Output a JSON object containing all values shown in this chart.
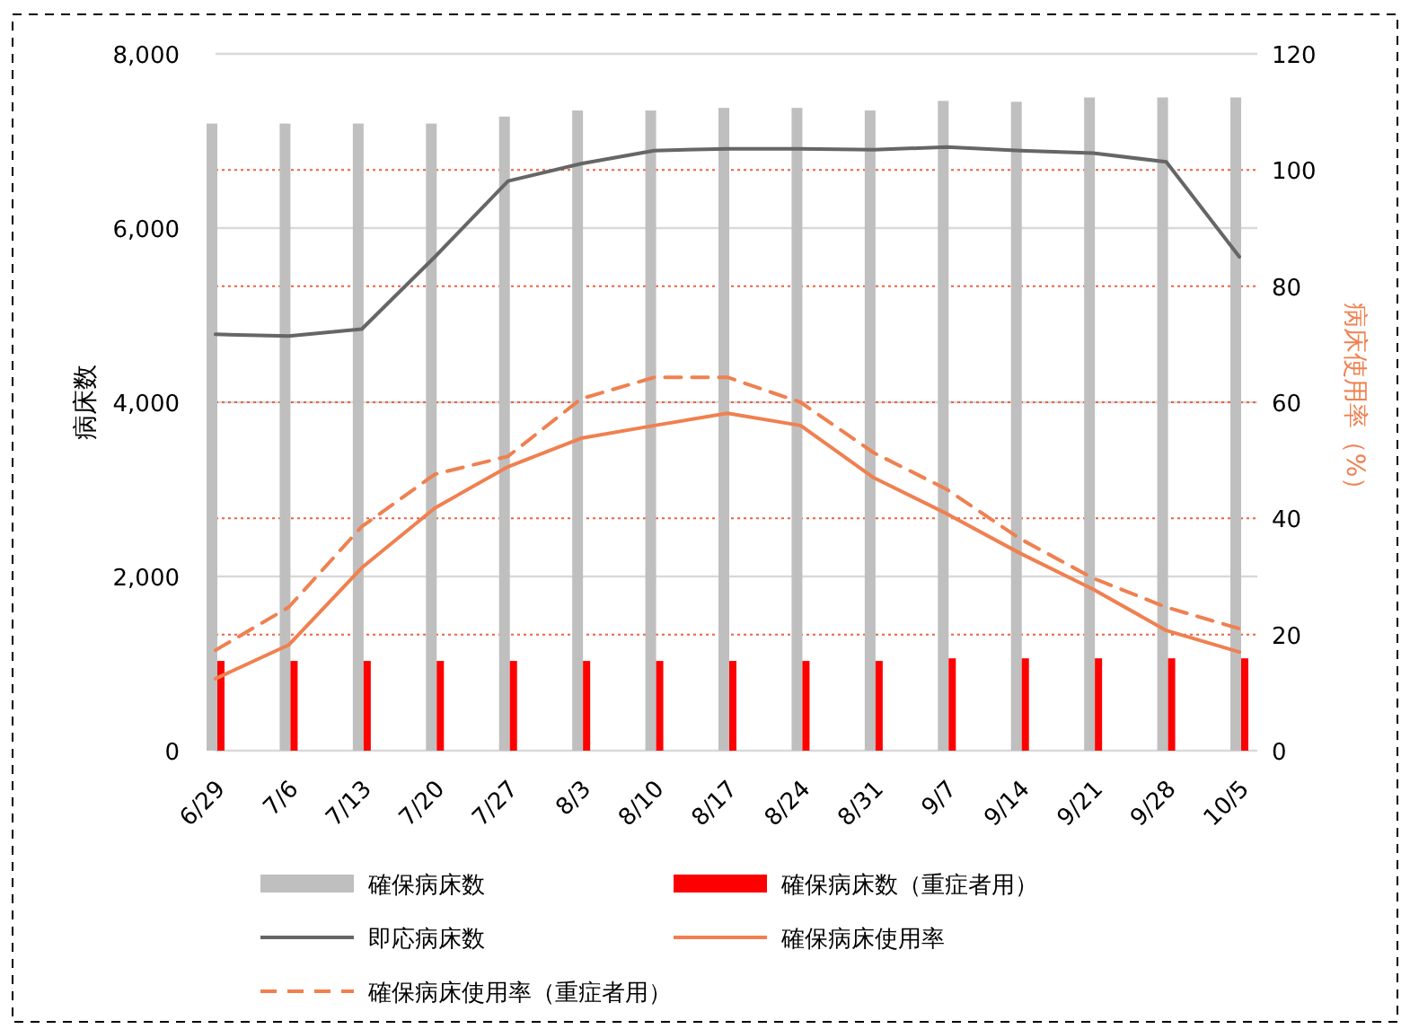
{
  "chart_data": {
    "type": "bar",
    "ylabel": "病床数",
    "y2label": "病床使用率（%）",
    "categories": [
      "6/29",
      "7/6",
      "7/13",
      "7/20",
      "7/27",
      "8/3",
      "8/10",
      "8/17",
      "8/24",
      "8/31",
      "9/7",
      "9/14",
      "9/21",
      "9/28",
      "10/5"
    ],
    "ylim": [
      0,
      8000
    ],
    "yticks": [
      {
        "value": 0,
        "label": "0"
      },
      {
        "value": 2000,
        "label": "2,000"
      },
      {
        "value": 4000,
        "label": "4,000"
      },
      {
        "value": 6000,
        "label": "6,000"
      },
      {
        "value": 8000,
        "label": "8,000"
      }
    ],
    "y2lim": [
      0,
      120
    ],
    "y2ticks": [
      0,
      20,
      40,
      60,
      80,
      100,
      120
    ],
    "grid": true,
    "legend": "bottom",
    "series": [
      {
        "name": "確保病床数",
        "color": "#bfbfbf",
        "values": [
          7200,
          7200,
          7200,
          7200,
          7280,
          7350,
          7350,
          7380,
          7380,
          7350,
          7460,
          7450,
          7500,
          7500,
          7500
        ]
      },
      {
        "name": "確保病床数（重症者用）",
        "color": "#ff0000",
        "values": [
          1030,
          1030,
          1030,
          1030,
          1030,
          1030,
          1030,
          1030,
          1030,
          1030,
          1060,
          1060,
          1060,
          1060,
          1060
        ]
      },
      {
        "name": "即応病床数",
        "type": "line",
        "color": "#666666",
        "line_style": "solid",
        "values": [
          4780,
          4760,
          4840,
          5670,
          6540,
          6740,
          6890,
          6910,
          6910,
          6900,
          6930,
          6890,
          6860,
          6760,
          5670
        ]
      },
      {
        "name": "確保病床使用率",
        "type": "line",
        "axis": "y2",
        "color": "#f08050",
        "line_style": "solid",
        "values": [
          12.4,
          18.2,
          31.5,
          41.8,
          48.9,
          53.8,
          56,
          58.1,
          56,
          47,
          40.8,
          34,
          27.8,
          20.7,
          17
        ]
      },
      {
        "name": "確保病床使用率（重症者用）",
        "type": "line",
        "axis": "y2",
        "color": "#f08050",
        "line_style": "dashed",
        "values": [
          17.3,
          24.7,
          38.6,
          47.6,
          50.7,
          60.6,
          64.3,
          64.3,
          60,
          51.3,
          45,
          36.5,
          29.7,
          24.7,
          21
        ]
      }
    ]
  }
}
